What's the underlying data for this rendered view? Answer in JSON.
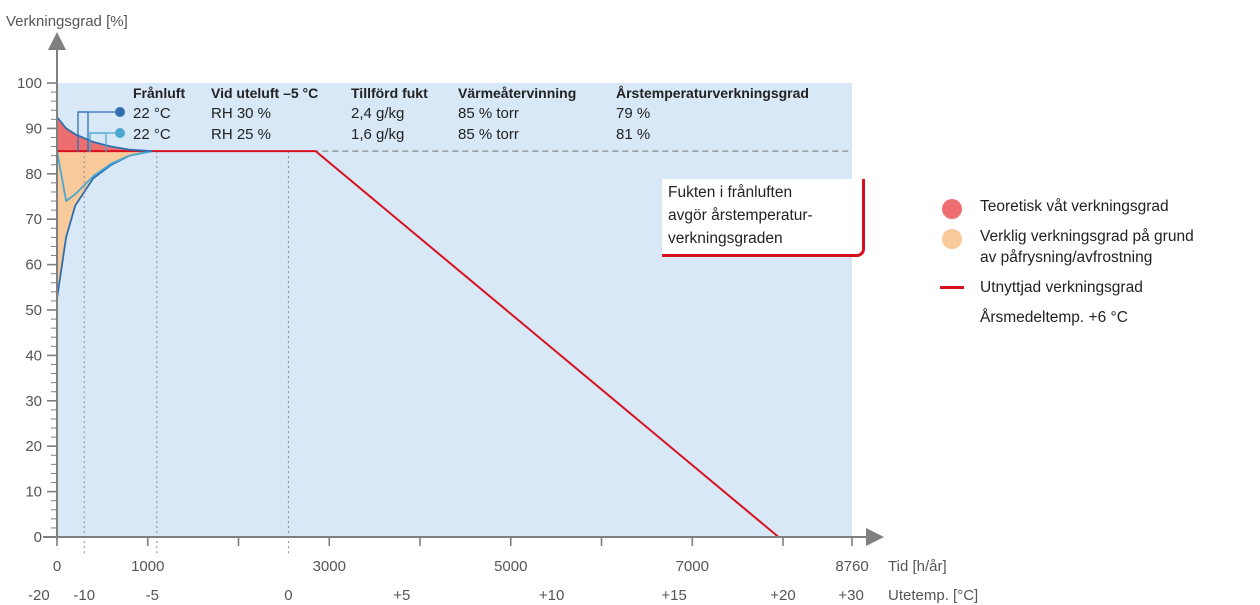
{
  "chart_data": {
    "type": "line",
    "ylabel": "Verkningsgrad [%]",
    "xlabel": "Tid [h/år]",
    "x2label": "Utetemp. [°C]",
    "ylim": [
      0,
      100
    ],
    "xlim": [
      0,
      8760
    ],
    "y_ticks": [
      "0",
      "10",
      "20",
      "30",
      "40",
      "50",
      "60",
      "70",
      "80",
      "90",
      "100"
    ],
    "x_ticks": [
      {
        "value": 0,
        "label": "0"
      },
      {
        "value": 1000,
        "label": "1000"
      },
      {
        "value": 3000,
        "label": "3000"
      },
      {
        "value": 5000,
        "label": "5000"
      },
      {
        "value": 7000,
        "label": "7000"
      },
      {
        "value": 8760,
        "label": "8760"
      }
    ],
    "temp_ticks": [
      {
        "value": -200,
        "label": "-20"
      },
      {
        "value": 300,
        "label": "-10"
      },
      {
        "value": 1050,
        "label": "-5"
      },
      {
        "value": 2550,
        "label": "0"
      },
      {
        "value": 3800,
        "label": "+5"
      },
      {
        "value": 5450,
        "label": "+10"
      },
      {
        "value": 6800,
        "label": "+15"
      },
      {
        "value": 8000,
        "label": "+20"
      },
      {
        "value": 8750,
        "label": "+30"
      }
    ],
    "grid": false,
    "reference_line": 85,
    "series": [
      {
        "name": "Utnyttjad verkningsgrad",
        "color": "#d7101e",
        "points": [
          [
            0,
            85
          ],
          [
            2850,
            85
          ],
          [
            7950,
            0
          ]
        ]
      },
      {
        "name": "",
        "color": "#2f6fb0",
        "points": [
          [
            0,
            52.5
          ],
          [
            100,
            66
          ],
          [
            200,
            73
          ],
          [
            400,
            79
          ],
          [
            600,
            82
          ],
          [
            800,
            84
          ],
          [
            1050,
            85
          ]
        ]
      },
      {
        "name": "",
        "color": "#4aa8cf",
        "points": [
          [
            0,
            85
          ],
          [
            100,
            74
          ],
          [
            200,
            75.5
          ],
          [
            400,
            79.5
          ],
          [
            600,
            82.3
          ],
          [
            800,
            84
          ],
          [
            1050,
            85
          ]
        ]
      },
      {
        "name": "",
        "color": "#2f6fb0",
        "points": [
          [
            0,
            92.5
          ],
          [
            100,
            90
          ],
          [
            200,
            88.7
          ],
          [
            400,
            87
          ],
          [
            600,
            86
          ],
          [
            800,
            85.3
          ],
          [
            1050,
            85
          ]
        ]
      }
    ],
    "areas": [
      {
        "name": "Teoretisk våt verkningsgrad",
        "color": "#ec6e6e"
      },
      {
        "name": "Verklig verkningsgrad på grund av påfrysning/avfrostning",
        "color": "#f8c99a"
      }
    ],
    "table": {
      "headers": [
        "Frånluft",
        "Vid uteluft –5 °C",
        "Tillförd fukt",
        "Värmeåtervinning",
        "Årstemperaturverkningsgrad"
      ],
      "rows": [
        {
          "marker_color": "#2f6fb0",
          "cells": [
            "22 °C",
            "RH 30 %",
            "2,4 g/kg",
            "85 % torr",
            "79 %"
          ]
        },
        {
          "marker_color": "#4aa8cf",
          "cells": [
            "22 °C",
            "RH 25 %",
            "1,6 g/kg",
            "85 % torr",
            "81 %"
          ]
        }
      ]
    }
  },
  "callout": {
    "line1": "Fukten i frånluften",
    "line2": "avgör årstemperatur-",
    "line3": "verkningsgraden"
  },
  "legend": {
    "wet": "Teoretisk våt verkningsgrad",
    "actual_1": "Verklig verkningsgrad på grund",
    "actual_2": "av påfrysning/avfrostning",
    "used": "Utnyttjad verkningsgrad",
    "annual": "Årsmedeltemp. +6 °C"
  },
  "colors": {
    "plot_bg": "#d8e8f7",
    "axis": "#7f7f7f",
    "red": "#d7101e"
  }
}
